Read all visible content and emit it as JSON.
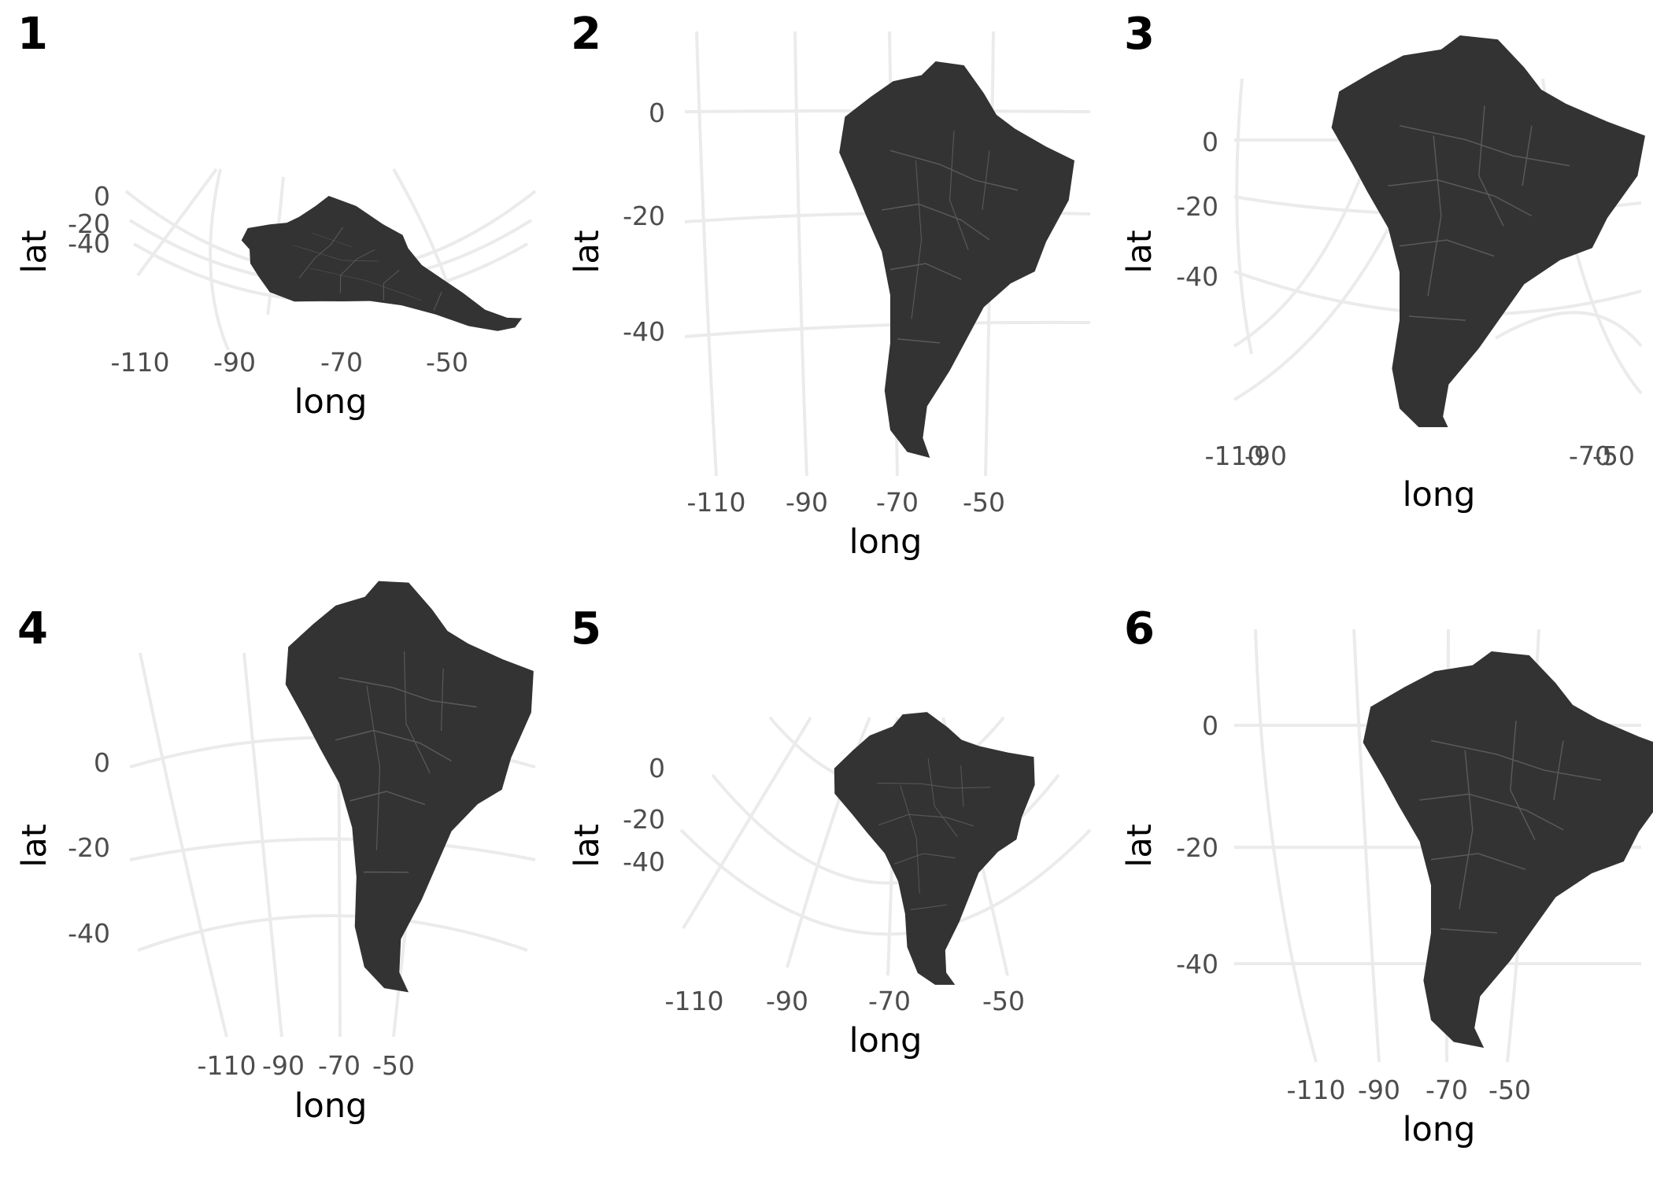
{
  "panels": [
    {
      "tag": "1",
      "ylabel": "lat",
      "xlabel": "long",
      "lat_ticks": [
        "0",
        "-20",
        "-40"
      ],
      "long_ticks": [
        "-110",
        "-90",
        "-70",
        "-50"
      ]
    },
    {
      "tag": "2",
      "ylabel": "lat",
      "xlabel": "long",
      "lat_ticks": [
        "0",
        "-20",
        "-40"
      ],
      "long_ticks": [
        "-110",
        "-90",
        "-70",
        "-50"
      ]
    },
    {
      "tag": "3",
      "ylabel": "lat",
      "xlabel": "long",
      "lat_ticks": [
        "0",
        "-20",
        "-40"
      ],
      "long_ticks": [
        "-110",
        "-90",
        "-70",
        "-50"
      ]
    },
    {
      "tag": "4",
      "ylabel": "lat",
      "xlabel": "long",
      "lat_ticks": [
        "0",
        "-20",
        "-40"
      ],
      "long_ticks": [
        "-110",
        "-90",
        "-70",
        "-50"
      ]
    },
    {
      "tag": "5",
      "ylabel": "lat",
      "xlabel": "long",
      "lat_ticks": [
        "0",
        "-20",
        "-40"
      ],
      "long_ticks": [
        "-110",
        "-90",
        "-70",
        "-50"
      ]
    },
    {
      "tag": "6",
      "ylabel": "lat",
      "xlabel": "long",
      "lat_ticks": [
        "0",
        "-20",
        "-40"
      ],
      "long_ticks": [
        "-110",
        "-90",
        "-70",
        "-50"
      ]
    }
  ],
  "colors": {
    "land": "#333333",
    "graticule": "#ebebeb",
    "tick_text": "#4d4d4d",
    "title_text": "#000000",
    "background": "#ffffff"
  }
}
